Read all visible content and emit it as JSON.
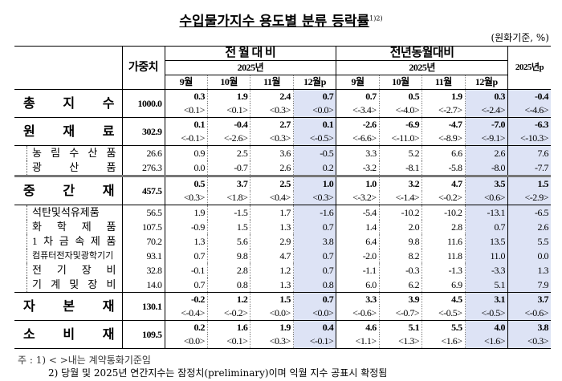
{
  "title": "수입물가지수 용도별 분류 등락률",
  "title_sup": "1)2)",
  "unit": "(원화기준, %)",
  "header": {
    "weight": "가중치",
    "mom": "전 월 대 비",
    "yoy": "전년동월대비",
    "year": "2025년",
    "year2": "2025년",
    "annual": "2025년p",
    "months": [
      "9월",
      "10월",
      "11월",
      "12월p",
      "9월",
      "10월",
      "11월",
      "12월p"
    ]
  },
  "rows": [
    {
      "label": "총 지 수",
      "weight": "1000.0",
      "type": "main",
      "v": [
        "0.3",
        "1.9",
        "2.4",
        "0.7",
        "0.7",
        "0.5",
        "1.9",
        "0.3",
        "-0.4"
      ],
      "c": [
        "<0.1>",
        "<0.1>",
        "<0.3>",
        "<0.0>",
        "<-3.4>",
        "<-4.0>",
        "<-2.7>",
        "<-2.4>",
        "<-4.6>"
      ]
    },
    {
      "label": "원 재 료",
      "weight": "302.9",
      "type": "main",
      "v": [
        "0.1",
        "-0.4",
        "2.7",
        "0.1",
        "-2.6",
        "-6.9",
        "-4.7",
        "-7.0",
        "-6.3"
      ],
      "c": [
        "<-0.1>",
        "<-2.6>",
        "<0.3>",
        "<-0.5>",
        "<-6.6>",
        "<-11.0>",
        "<-8.9>",
        "<-9.1>",
        "<-10.3>"
      ]
    },
    {
      "label": "농 림 수 산 품",
      "weight": "26.6",
      "type": "sub",
      "v": [
        "0.9",
        "2.5",
        "3.6",
        "-0.5",
        "3.3",
        "5.2",
        "6.6",
        "2.6",
        "7.6"
      ]
    },
    {
      "label": "광 산 품",
      "weight": "276.3",
      "type": "sub",
      "v": [
        "0.0",
        "-0.7",
        "2.6",
        "0.2",
        "-3.2",
        "-8.1",
        "-5.8",
        "-8.0",
        "-7.7"
      ],
      "thick": true
    },
    {
      "label": "중 간 재",
      "weight": "457.5",
      "type": "main",
      "v": [
        "0.5",
        "3.7",
        "2.5",
        "1.0",
        "1.0",
        "3.2",
        "4.7",
        "3.5",
        "1.5"
      ],
      "c": [
        "<0.3>",
        "<1.8>",
        "<0.4>",
        "<0.3>",
        "<-3.2>",
        "<-1.4>",
        "<-0.2>",
        "<0.6>",
        "<-2.9>"
      ]
    },
    {
      "label": "석탄및석유제품",
      "weight": "56.5",
      "type": "sub",
      "v": [
        "1.9",
        "-1.5",
        "1.7",
        "-1.6",
        "-5.4",
        "-10.2",
        "-10.2",
        "-13.1",
        "-6.5"
      ]
    },
    {
      "label": "화 학 제 품",
      "weight": "107.5",
      "type": "sub",
      "v": [
        "-0.9",
        "1.5",
        "1.3",
        "0.7",
        "1.4",
        "2.0",
        "2.8",
        "0.7",
        "2.6"
      ]
    },
    {
      "label": "1 차 금 속 제 품",
      "weight": "70.2",
      "type": "sub",
      "v": [
        "1.3",
        "5.6",
        "2.9",
        "3.8",
        "6.4",
        "9.8",
        "11.6",
        "13.5",
        "5.5"
      ]
    },
    {
      "label": "컴퓨터전자및광학기기",
      "weight": "93.1",
      "type": "sub",
      "v": [
        "0.7",
        "9.8",
        "4.7",
        "0.7",
        "-2.0",
        "8.2",
        "11.8",
        "11.0",
        "0.0"
      ]
    },
    {
      "label": "전 기 장 비",
      "weight": "32.8",
      "type": "sub",
      "v": [
        "-0.1",
        "2.8",
        "1.2",
        "0.7",
        "-1.1",
        "-0.3",
        "-1.3",
        "-3.3",
        "1.3"
      ]
    },
    {
      "label": "기 계 및 장 비",
      "weight": "14.0",
      "type": "sub",
      "v": [
        "0.7",
        "0.8",
        "1.3",
        "0.8",
        "6.0",
        "6.2",
        "6.9",
        "5.1",
        "7.9"
      ],
      "last": true
    },
    {
      "label": "자 본 재",
      "weight": "130.1",
      "type": "main",
      "v": [
        "-0.2",
        "1.2",
        "1.5",
        "0.7",
        "3.3",
        "3.9",
        "4.5",
        "3.1",
        "3.7"
      ],
      "c": [
        "<-0.4>",
        "<-0.2>",
        "<0.0>",
        "<0.0>",
        "<-0.6>",
        "<-0.7>",
        "<-0.5>",
        "<-0.5>",
        "<-0.6>"
      ]
    },
    {
      "label": "소 비 재",
      "weight": "109.5",
      "type": "main",
      "v": [
        "0.2",
        "1.6",
        "1.9",
        "0.4",
        "4.6",
        "5.1",
        "5.5",
        "4.0",
        "3.8"
      ],
      "c": [
        "<0.0>",
        "<0.1>",
        "<0.3>",
        "<-0.1>",
        "<1.1>",
        "<1.3>",
        "<1.6>",
        "<1.6>",
        "<0.3>"
      ]
    }
  ],
  "notes": [
    "주 : 1) < >내는 계약통화기준임",
    "2) 당월 및 2025년 연간지수는 잠정치(preliminary)이며 익월 지수 공표시 확정됨"
  ],
  "highlight_color": "#dde3f5"
}
